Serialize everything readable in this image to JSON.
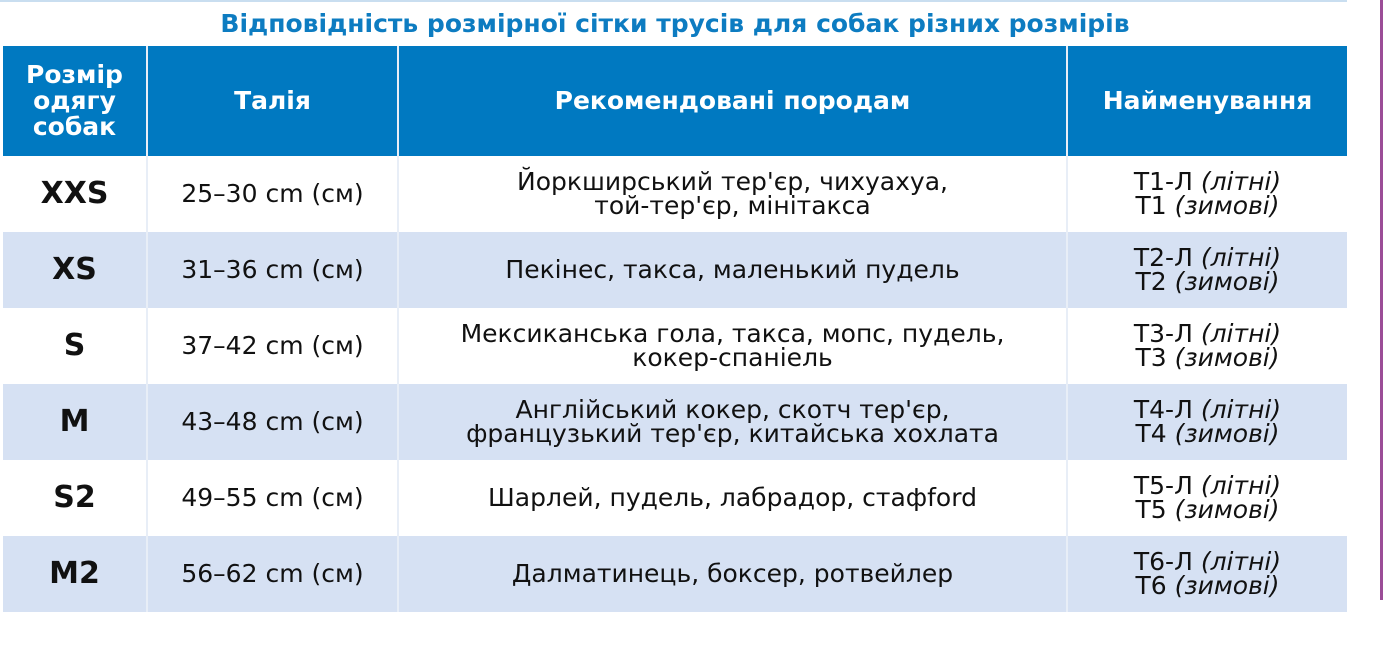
{
  "title": "Відповідність розмірної сітки трусів для собак різних розмірів",
  "colors": {
    "header_bg": "#0079c1",
    "title": "#0d7cc1",
    "alt_row": "#d6e1f3",
    "right_border": "#9b4d97"
  },
  "headers": {
    "size_lines": [
      "Розмір",
      "одягу",
      "собак"
    ],
    "waist": "Талія",
    "breeds": "Рекомендовані породам",
    "name": "Найменування"
  },
  "rows": [
    {
      "size": "XXS",
      "waist": "25–30 cm (см)",
      "breeds": [
        "Йоркширський тер'єр, чихуахуа,",
        "той-тер'єр, мінітакса"
      ],
      "name_summer": "Т1-Л",
      "summer": "(літні)",
      "name_winter": "Т1",
      "winter": "(зимові)"
    },
    {
      "size": "XS",
      "waist": "31–36 cm (см)",
      "breeds": [
        "Пекінес, такса, маленький пудель"
      ],
      "name_summer": "Т2-Л",
      "summer": "(літні)",
      "name_winter": "Т2",
      "winter": "(зимові)"
    },
    {
      "size": "S",
      "waist": "37–42 cm (см)",
      "breeds": [
        "Мексиканська гола, такса, мопс, пудель,",
        "кокер-спаніель"
      ],
      "name_summer": "Т3-Л",
      "summer": "(літні)",
      "name_winter": "Т3",
      "winter": "(зимові)"
    },
    {
      "size": "M",
      "waist": "43–48 cm (см)",
      "breeds": [
        "Англійський кокер, скотч тер'єр,",
        "французький тер'єр, китайська хохлата"
      ],
      "name_summer": "Т4-Л",
      "summer": "(літні)",
      "name_winter": "Т4",
      "winter": "(зимові)"
    },
    {
      "size": "S2",
      "waist": "49–55 cm (см)",
      "breeds": [
        "Шарлей, пудель, лабрадор, стафford"
      ],
      "name_summer": "Т5-Л",
      "summer": "(літні)",
      "name_winter": "Т5",
      "winter": "(зимові)"
    },
    {
      "size": "M2",
      "waist": "56–62 cm (см)",
      "breeds": [
        "Далматинець, боксер, ротвейлер"
      ],
      "name_summer": "Т6-Л",
      "summer": "(літні)",
      "name_winter": "Т6",
      "winter": "(зимові)"
    }
  ]
}
